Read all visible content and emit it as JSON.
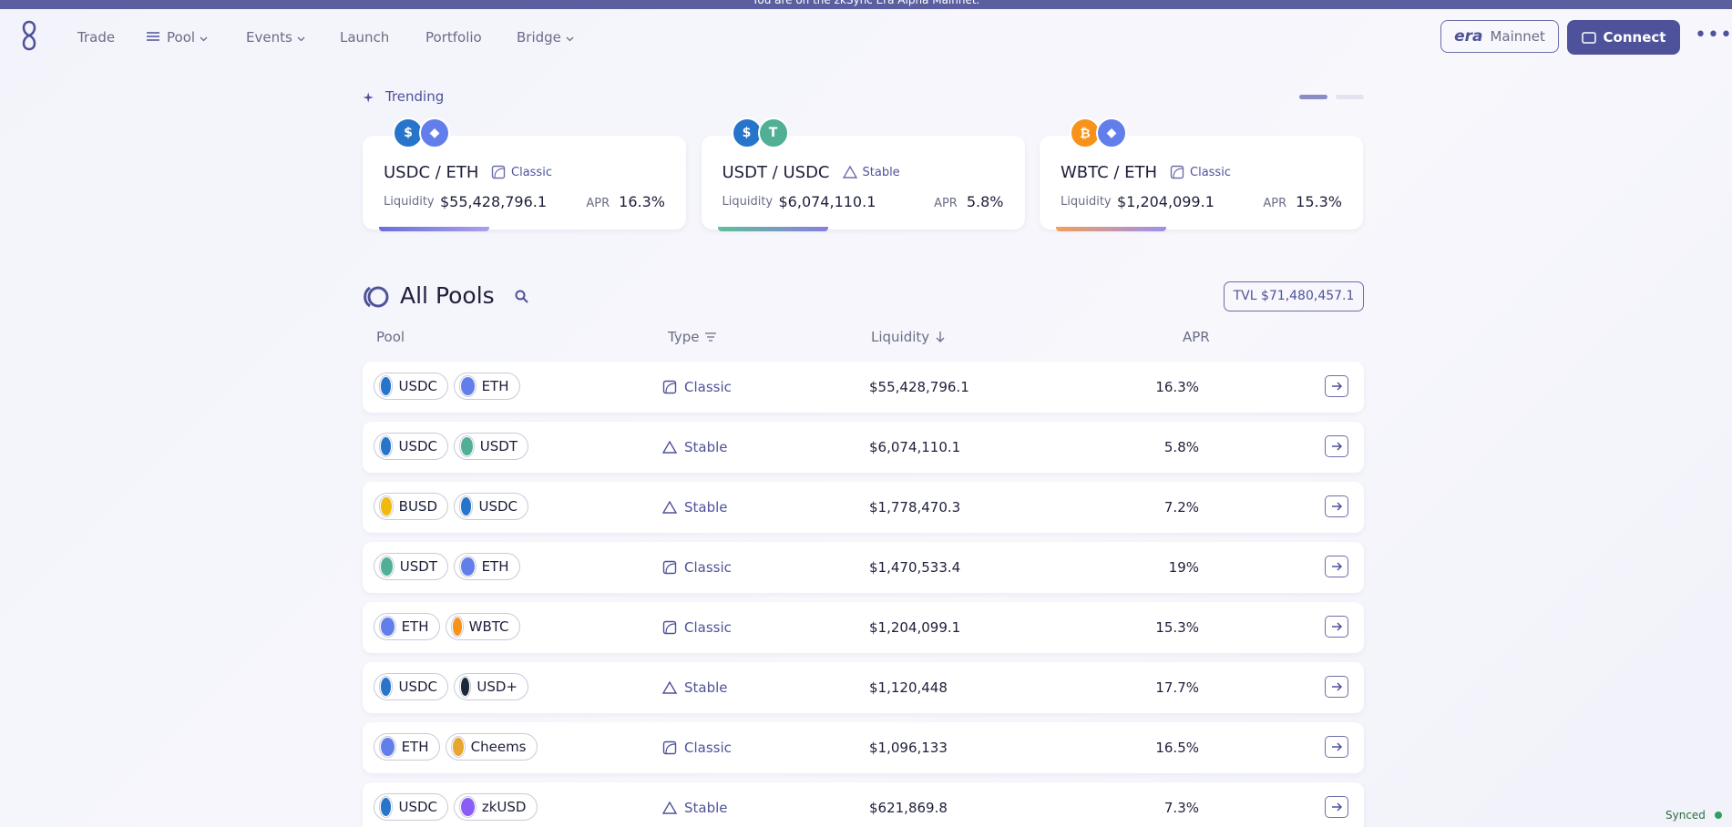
{
  "banner": "You are on the zkSync Era Alpha Mainnet.",
  "nav": {
    "items": [
      "Trade",
      "Pool",
      "Events",
      "Launch",
      "Portfolio",
      "Bridge"
    ],
    "network_brand": "era",
    "network": "Mainnet",
    "connect": "Connect"
  },
  "trending": {
    "title": "Trending",
    "cards": [
      {
        "pair": "USDC / ETH",
        "tokens": [
          {
            "color": "#2775ca",
            "glyph": "$"
          },
          {
            "color": "#627eea",
            "glyph": "◆"
          }
        ],
        "type": "Classic",
        "liquidity_label": "Liquidity",
        "liquidity": "$55,428,796.1",
        "apr_label": "APR",
        "apr": "16.3%"
      },
      {
        "pair": "USDT / USDC",
        "tokens": [
          {
            "color": "#2775ca",
            "glyph": "$"
          },
          {
            "color": "#50af95",
            "glyph": "T"
          }
        ],
        "type": "Stable",
        "liquidity_label": "Liquidity",
        "liquidity": "$6,074,110.1",
        "apr_label": "APR",
        "apr": "5.8%"
      },
      {
        "pair": "WBTC / ETH",
        "tokens": [
          {
            "color": "#f7931a",
            "glyph": "₿"
          },
          {
            "color": "#627eea",
            "glyph": "◆"
          }
        ],
        "type": "Classic",
        "liquidity_label": "Liquidity",
        "liquidity": "$1,204,099.1",
        "apr_label": "APR",
        "apr": "15.3%"
      }
    ]
  },
  "pools": {
    "title": "All Pools",
    "tvl": "TVL $71,480,457.1",
    "headers": [
      "Pool",
      "Type",
      "Liquidity",
      "APR"
    ],
    "rows": [
      {
        "tokens": [
          {
            "symbol": "USDC",
            "color": "#2775ca"
          },
          {
            "symbol": "ETH",
            "color": "#627eea"
          }
        ],
        "type": "Classic",
        "liquidity": "$55,428,796.1",
        "apr": "16.3%"
      },
      {
        "tokens": [
          {
            "symbol": "USDC",
            "color": "#2775ca"
          },
          {
            "symbol": "USDT",
            "color": "#50af95"
          }
        ],
        "type": "Stable",
        "liquidity": "$6,074,110.1",
        "apr": "5.8%"
      },
      {
        "tokens": [
          {
            "symbol": "BUSD",
            "color": "#f0b90b"
          },
          {
            "symbol": "USDC",
            "color": "#2775ca"
          }
        ],
        "type": "Stable",
        "liquidity": "$1,778,470.3",
        "apr": "7.2%"
      },
      {
        "tokens": [
          {
            "symbol": "USDT",
            "color": "#50af95"
          },
          {
            "symbol": "ETH",
            "color": "#627eea"
          }
        ],
        "type": "Classic",
        "liquidity": "$1,470,533.4",
        "apr": "19%"
      },
      {
        "tokens": [
          {
            "symbol": "ETH",
            "color": "#627eea"
          },
          {
            "symbol": "WBTC",
            "color": "#f7931a"
          }
        ],
        "type": "Classic",
        "liquidity": "$1,204,099.1",
        "apr": "15.3%"
      },
      {
        "tokens": [
          {
            "symbol": "USDC",
            "color": "#2775ca"
          },
          {
            "symbol": "USD+",
            "color": "#1b2a38"
          }
        ],
        "type": "Stable",
        "liquidity": "$1,120,448",
        "apr": "17.7%"
      },
      {
        "tokens": [
          {
            "symbol": "ETH",
            "color": "#627eea"
          },
          {
            "symbol": "Cheems",
            "color": "#e8a630"
          }
        ],
        "type": "Classic",
        "liquidity": "$1,096,133",
        "apr": "16.5%"
      },
      {
        "tokens": [
          {
            "symbol": "USDC",
            "color": "#2775ca"
          },
          {
            "symbol": "zkUSD",
            "color": "#8b5cf6"
          }
        ],
        "type": "Stable",
        "liquidity": "$621,869.8",
        "apr": "7.3%"
      }
    ]
  },
  "status": "Synced"
}
